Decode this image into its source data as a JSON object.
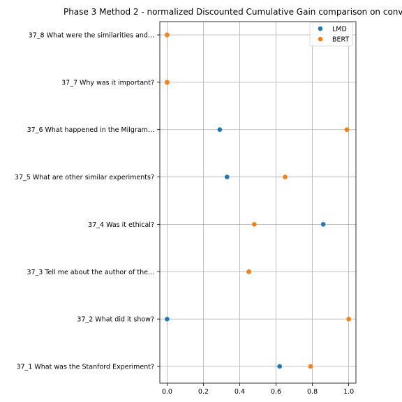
{
  "chart_data": {
    "type": "scatter",
    "title": "Phase 3 Method 2 - normalized Discounted Cumulative Gain comparison on conv",
    "xlabel": "",
    "ylabel": "",
    "xlim": [
      -0.04,
      1.04
    ],
    "x_ticks": [
      "0.0",
      "0.2",
      "0.4",
      "0.6",
      "0.8",
      "1.0"
    ],
    "grid": true,
    "legend_position": "top-right",
    "categories": [
      "37_1 What was the Stanford Experiment?",
      "37_2 What did it show?",
      "37_3 Tell me about the author of the...",
      "37_4 Was it ethical?",
      "37_5 What are other similar experiments?",
      "37_6 What happened in the Milgram...",
      "37_7 Why was it important?",
      "37_8 What were the similarities and..."
    ],
    "series": [
      {
        "name": "LMD",
        "color": "#1f77b4",
        "values": [
          0.62,
          0.0,
          0.45,
          0.86,
          0.33,
          0.29,
          0.0,
          0.0
        ]
      },
      {
        "name": "BERT",
        "color": "#ff7f0e",
        "values": [
          0.79,
          1.0,
          0.45,
          0.48,
          0.65,
          0.99,
          0.0,
          0.0
        ]
      }
    ]
  }
}
